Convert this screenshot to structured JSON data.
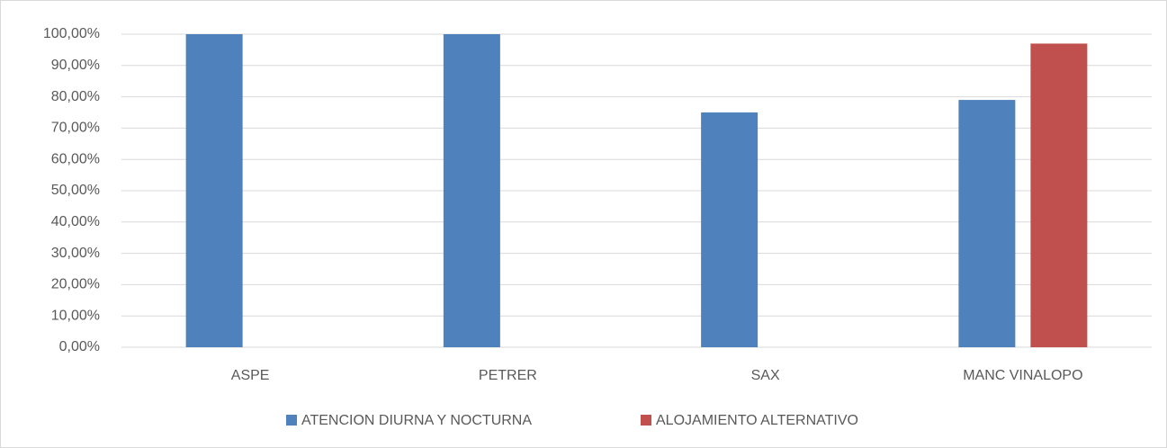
{
  "chart_data": {
    "type": "bar",
    "categories": [
      "ASPE",
      "PETRER",
      "SAX",
      "MANC VINALOPO"
    ],
    "series": [
      {
        "name": "ATENCION DIURNA Y NOCTURNA",
        "color": "#4f81bd",
        "values": [
          100,
          100,
          75,
          79
        ]
      },
      {
        "name": "ALOJAMIENTO ALTERNATIVO",
        "color": "#c0504d",
        "values": [
          null,
          null,
          null,
          97
        ]
      }
    ],
    "ylim": [
      0,
      100
    ],
    "yticks": [
      {
        "value": 0,
        "label": "0,00%"
      },
      {
        "value": 10,
        "label": "10,00%"
      },
      {
        "value": 20,
        "label": "20,00%"
      },
      {
        "value": 30,
        "label": "30,00%"
      },
      {
        "value": 40,
        "label": "40,00%"
      },
      {
        "value": 50,
        "label": "50,00%"
      },
      {
        "value": 60,
        "label": "60,00%"
      },
      {
        "value": 70,
        "label": "70,00%"
      },
      {
        "value": 80,
        "label": "80,00%"
      },
      {
        "value": 90,
        "label": "90,00%"
      },
      {
        "value": 100,
        "label": "100,00%"
      }
    ],
    "grid": true,
    "legend": "bottom"
  }
}
